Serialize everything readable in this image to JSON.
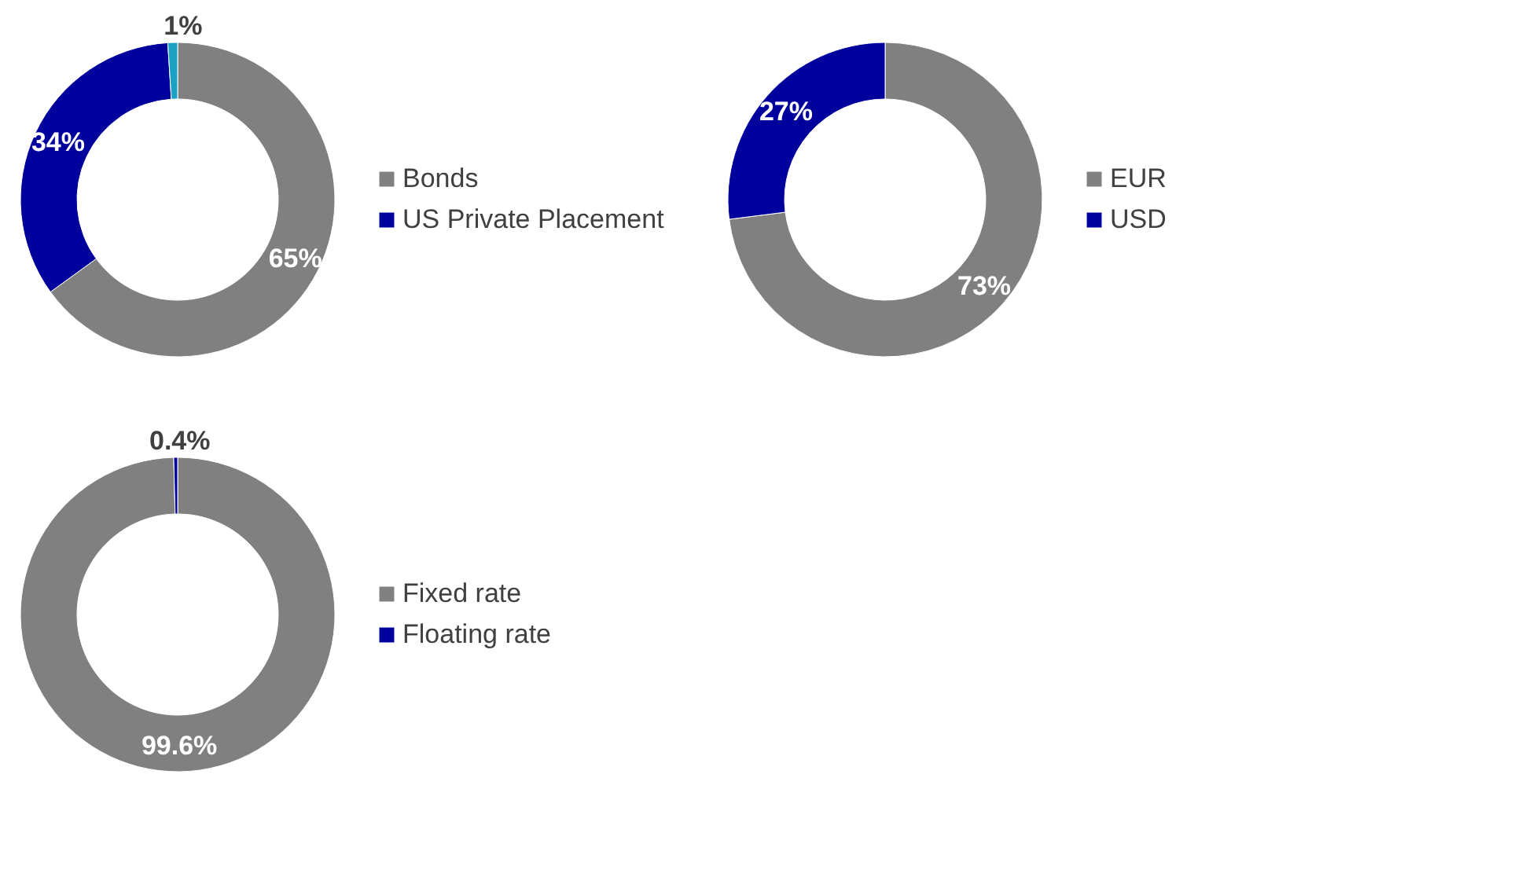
{
  "chart_data": [
    {
      "type": "donut",
      "categories": [
        "Bonds",
        "US Private Placement",
        null
      ],
      "values": [
        65,
        34,
        1
      ],
      "colors": [
        "#808080",
        "#00009c",
        "#1ba1c4"
      ],
      "value_labels": [
        "65%",
        "34%",
        "1%"
      ],
      "legend": "right"
    },
    {
      "type": "donut",
      "categories": [
        "EUR",
        "USD"
      ],
      "values": [
        73,
        27
      ],
      "colors": [
        "#808080",
        "#00009c"
      ],
      "value_labels": [
        "73%",
        "27%"
      ],
      "legend": "right"
    },
    {
      "type": "donut",
      "categories": [
        "Fixed rate",
        "Floating rate"
      ],
      "values": [
        99.6,
        0.4
      ],
      "colors": [
        "#808080",
        "#00009c"
      ],
      "value_labels": [
        "99.6%",
        "0.4%"
      ],
      "legend": "right"
    }
  ]
}
